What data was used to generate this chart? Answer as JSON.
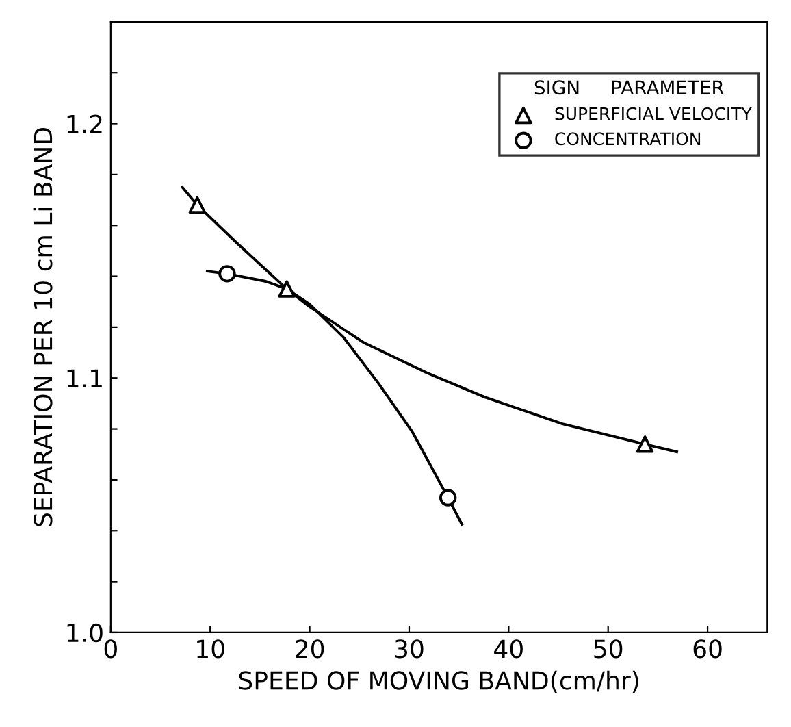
{
  "chart_data": {
    "type": "scatter",
    "xlabel": "SPEED OF MOVING BAND(cm/hr)",
    "ylabel": "SEPARATION PER 10 cm Li BAND",
    "legend_title": "SIGN     PARAMETER",
    "legend": "top right",
    "grid": false,
    "xlim": [
      0,
      66
    ],
    "ylim": [
      1.0,
      1.24
    ],
    "xticks": [
      0,
      10,
      20,
      30,
      40,
      50,
      60
    ],
    "yticks": [
      {
        "value": 1.0,
        "label": "1.0"
      },
      {
        "value": 1.02,
        "label": null
      },
      {
        "value": 1.04,
        "label": null
      },
      {
        "value": 1.06,
        "label": null
      },
      {
        "value": 1.08,
        "label": null
      },
      1.1,
      {
        "value": 1.12,
        "label": null
      },
      {
        "value": 1.14,
        "label": null
      },
      {
        "value": 1.16,
        "label": null
      },
      {
        "value": 1.18,
        "label": null
      },
      1.2,
      {
        "value": 1.22,
        "label": null
      }
    ],
    "series": [
      {
        "name": "SUPERFICIAL VELOCITY",
        "color": "#000000",
        "marker": "triangle",
        "x": [
          8.7,
          17.7,
          53.7
        ],
        "values": [
          1.168,
          1.135,
          1.074
        ]
      },
      {
        "name": "CONCENTRATION",
        "color": "#000000",
        "marker": "circle",
        "x": [
          11.7,
          33.9
        ],
        "values": [
          1.141,
          1.053
        ]
      },
      {
        "type": "line",
        "color": "#000000",
        "marker": "none",
        "line_style": "solid",
        "x": [
          7.2,
          8.7,
          12.7,
          17.7,
          20,
          25.4,
          31.8,
          37.6,
          45.4,
          53.7,
          56.9
        ],
        "values": [
          1.175,
          1.168,
          1.153,
          1.135,
          1.128,
          1.114,
          1.102,
          1.0925,
          1.082,
          1.074,
          1.071
        ]
      },
      {
        "type": "line",
        "color": "#000000",
        "marker": "none",
        "line_style": "solid",
        "x": [
          9.7,
          11.7,
          15.6,
          17.7,
          20,
          23.4,
          26.9,
          30.3,
          33.9,
          35.3
        ],
        "values": [
          1.142,
          1.141,
          1.138,
          1.135,
          1.129,
          1.116,
          1.098,
          1.079,
          1.053,
          1.0425
        ]
      }
    ]
  }
}
